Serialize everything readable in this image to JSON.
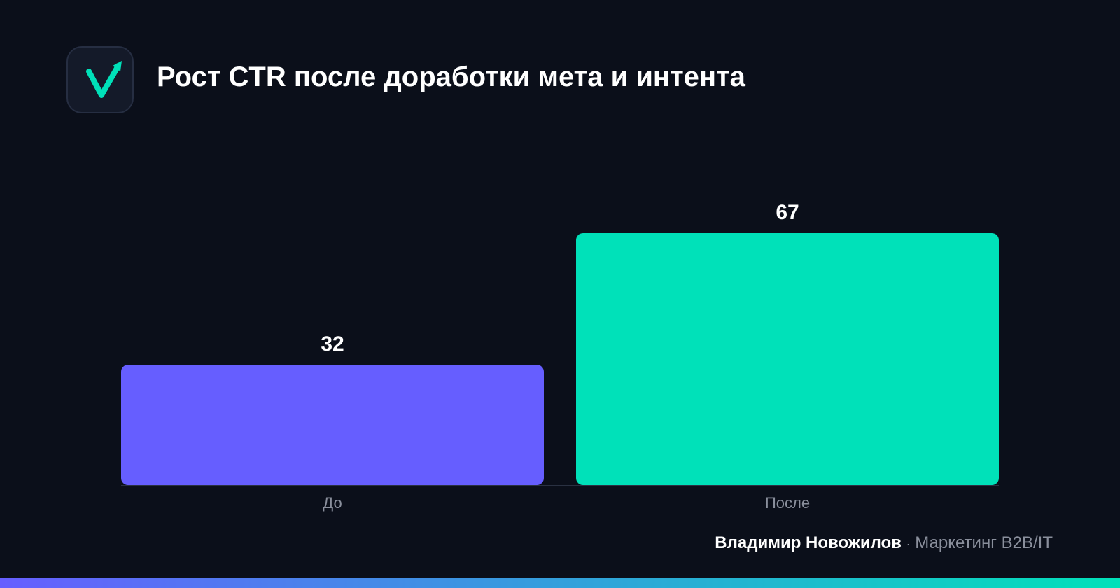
{
  "header": {
    "title": "Рост CTR после доработки мета и интента",
    "logo_icon": "checkmark-arrow-icon"
  },
  "chart_data": {
    "type": "bar",
    "categories": [
      "До",
      "После"
    ],
    "values": [
      32,
      67
    ],
    "title": "Рост CTR после доработки мета и интента",
    "xlabel": "",
    "ylabel": "",
    "ylim": [
      0,
      67
    ],
    "grid": false,
    "legend": "none",
    "colors": [
      "#665eff",
      "#00e1b9"
    ]
  },
  "footer": {
    "author": "Владимир Новожилов",
    "separator": "·",
    "role": "Маркетинг B2B/IT"
  },
  "colors": {
    "background": "#0b0f1a",
    "accent": "#00e1b9",
    "primary": "#665eff",
    "muted_text": "#8a8f9c"
  }
}
